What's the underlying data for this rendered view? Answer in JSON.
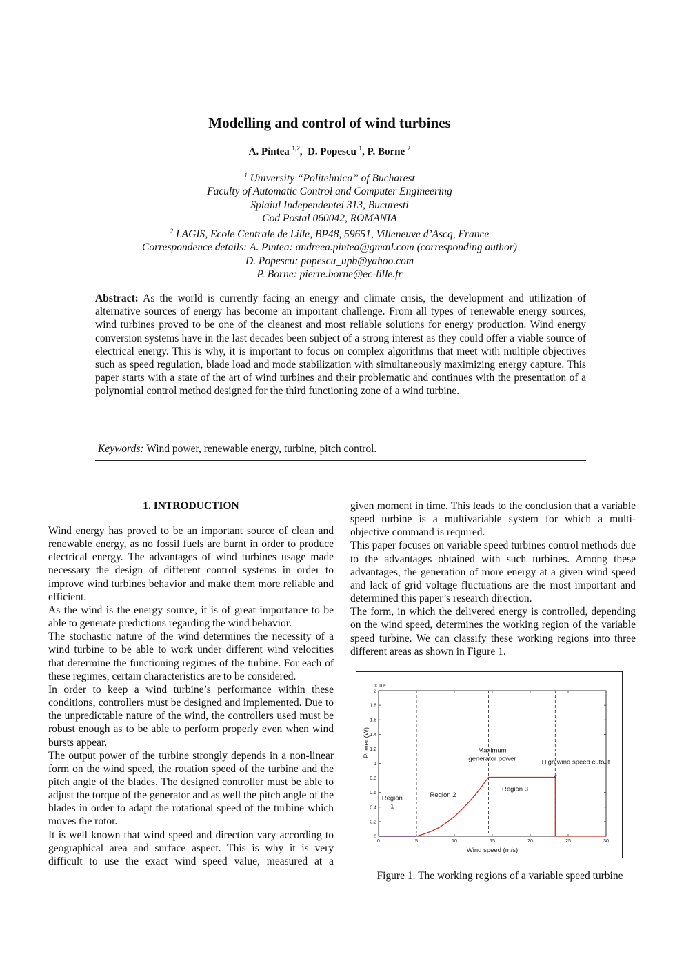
{
  "paper": {
    "title": "Modelling and control of wind turbines",
    "authors": [
      {
        "name": "A. Pintea",
        "sup": "1,2"
      },
      {
        "name": "D. Popescu",
        "sup": "1"
      },
      {
        "name": "P. Borne",
        "sup": "2"
      }
    ],
    "affiliations": [
      {
        "sup": "1",
        "text": "University “Politehnica” of Bucharest"
      },
      {
        "sup": "",
        "text": "Faculty of Automatic Control and Computer Engineering"
      },
      {
        "sup": "",
        "text": "Splaiul Independentei 313, Bucuresti"
      },
      {
        "sup": "",
        "text": "Cod Postal 060042, ROMANIA"
      },
      {
        "sup": "2",
        "text": "LAGIS, Ecole Centrale de Lille, BP48, 59651, Villeneuve d’Ascq, France"
      },
      {
        "sup": "",
        "text": "Correspondence details: A. Pintea: andreea.pintea@gmail.com (corresponding author)"
      },
      {
        "sup": "",
        "text": "D. Popescu: popescu_upb@yahoo.com"
      },
      {
        "sup": "",
        "text": "P. Borne: pierre.borne@ec-lille.fr"
      }
    ],
    "abstract_label": "Abstract:",
    "abstract_text": "As the world is currently facing an energy and climate crisis, the development and utilization of alternative sources of energy has become an important challenge. From all types of renewable energy sources, wind turbines proved to be one of the cleanest and most reliable solutions for energy production. Wind energy conversion systems have in the last decades been subject of a strong interest as they could offer a viable source of electrical energy. This is why, it is important to focus on complex algorithms that meet with multiple objectives such as speed regulation, blade load and mode stabilization with simultaneously maximizing energy capture. This paper starts with a state of the art of wind turbines and their problematic and continues with the presentation of a polynomial control method designed for the third functioning zone of a wind turbine.",
    "keywords_label": "Keywords:",
    "keywords_text": "Wind power, renewable energy, turbine, pitch control.",
    "section_title": "1. INTRODUCTION",
    "left_paragraphs": [
      "Wind energy has proved to be an important source of clean and renewable energy, as no fossil fuels are burnt in order to produce electrical energy. The advantages of wind turbines usage made necessary the design of different control systems in order to improve wind turbines behavior and make them more reliable and efficient.",
      "As the wind is the energy source, it is of great importance to be able to generate predictions regarding the wind behavior.",
      "The stochastic nature of the wind determines the necessity of a wind turbine to be able to work under different wind velocities that determine the functioning regimes of the turbine. For each of these regimes, certain characteristics are to be considered.",
      "In order to keep a wind turbine’s performance within these conditions, controllers must be designed and implemented. Due to the unpredictable nature of the wind, the controllers used must be robust enough as to be able to perform properly even when wind bursts appear.",
      "The output power of the turbine strongly depends in a non-linear form on the wind speed, the rotation speed of the turbine and the pitch angle of the blades. The designed controller must be able to adjust the torque of the generator and as well the pitch angle of the blades in order to adapt the rotational speed of the turbine which moves the rotor.",
      "It is well known that wind speed and direction vary according to geographical area and surface aspect. This is why it is very difficult to use the exact wind speed value, measured at a"
    ],
    "right_paragraphs": [
      "given moment in time. This leads to the conclusion that a variable speed turbine is a multivariable system for which a multi-objective command is required.",
      "This paper focuses on variable speed turbines control methods due to the advantages obtained with such turbines. Among these advantages, the generation of more energy at a given wind speed and lack of grid voltage fluctuations are the most important and determined this paper’s research direction.",
      "The form, in which the delivered energy is controlled, depending on the wind speed, determines the working region of the variable speed turbine. We can classify these working regions into three different areas as shown in Figure 1."
    ],
    "figure_caption": "Figure 1. The working regions of a variable speed turbine"
  },
  "chart_data": {
    "type": "line",
    "xlabel": "Wind speed (m/s)",
    "ylabel": "Power (W)",
    "y_multiplier": "× 10⁶",
    "xlim": [
      0,
      30
    ],
    "ylim": [
      0,
      2
    ],
    "x_ticks": [
      0,
      5,
      10,
      15,
      20,
      25,
      30
    ],
    "y_ticks": [
      0,
      0.2,
      0.4,
      0.6,
      0.8,
      1,
      1.2,
      1.4,
      1.6,
      1.8,
      2
    ],
    "y_tick_labels": [
      "0",
      "0.2",
      "0.4",
      "0.6",
      "0.8",
      "1",
      "1.2",
      "1.4",
      "1.6",
      "1.8",
      "2"
    ],
    "boundaries": [
      5,
      14.5,
      23.3
    ],
    "series": [
      {
        "color": "#d62a1e",
        "x": [
          0,
          5,
          6,
          7,
          8,
          9,
          10,
          11,
          12,
          13,
          14,
          14.5,
          16,
          18,
          20,
          22,
          23.3,
          23.3,
          25,
          30
        ],
        "y": [
          0,
          0,
          0.03,
          0.07,
          0.12,
          0.19,
          0.27,
          0.37,
          0.48,
          0.6,
          0.74,
          0.81,
          0.81,
          0.81,
          0.81,
          0.81,
          0.81,
          0,
          0,
          0
        ]
      },
      {
        "color": "#3a2fa0",
        "x": [
          0,
          5
        ],
        "y": [
          0,
          0
        ]
      }
    ],
    "annotations": [
      {
        "lines": [
          "Region",
          "1"
        ],
        "x": 1.8,
        "y": 0.5
      },
      {
        "lines": [
          "Region 2"
        ],
        "x": 8.5,
        "y": 0.54
      },
      {
        "lines": [
          "Region 3"
        ],
        "x": 18,
        "y": 0.62
      },
      {
        "lines": [
          "Maximum",
          "generator power"
        ],
        "x": 15,
        "y": 1.15
      },
      {
        "lines": [
          "High wind speed cutout"
        ],
        "x": 26,
        "y": 0.99
      }
    ]
  }
}
